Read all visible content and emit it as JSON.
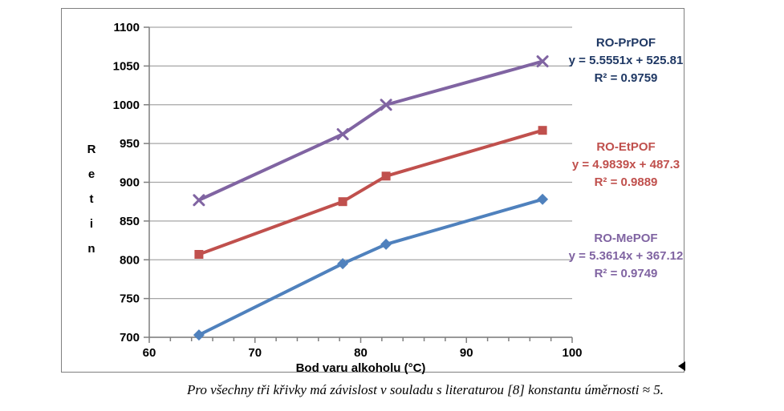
{
  "figure": {
    "caption": "Pro všechny tři křivky má závislost v souladu s literaturou [8] konstantu úměrnosti ≈ 5."
  },
  "chart_data": {
    "type": "line",
    "title": "",
    "xlabel": "Bod varu alkoholu (°C)",
    "ylabel": "Retin",
    "xlim": [
      60,
      100
    ],
    "ylim": [
      700,
      1100
    ],
    "x_major_step": 10,
    "x_minor_step": 2,
    "y_step": 50,
    "grid": true,
    "legend_position": "right-side data labels",
    "x": [
      64.7,
      78.3,
      82.4,
      97.2
    ],
    "series": [
      {
        "name": "RO-PrPOF",
        "values": [
          877,
          962,
          1000,
          1056
        ],
        "color": "#8064A2",
        "marker": "x",
        "label_color": "#1F3864",
        "equation": "y = 5.5551x + 525.81",
        "r_squared": "R² = 0.9759"
      },
      {
        "name": "RO-EtPOF",
        "values": [
          807,
          875,
          908,
          967
        ],
        "color": "#C0504D",
        "marker": "square",
        "label_color": "#C0504D",
        "equation": "y = 4.9839x + 487.3",
        "r_squared": "R² = 0.9889"
      },
      {
        "name": "RO-MePOF",
        "values": [
          703,
          795,
          820,
          878
        ],
        "color": "#4F81BD",
        "marker": "diamond",
        "label_color": "#8064A2",
        "equation": "y = 5.3614x + 367.12",
        "r_squared": "R² = 0.9749"
      }
    ],
    "colors": {
      "gridline": "#a6a6a6",
      "axis": "#7f7f7f",
      "purple_series": "#8064A2",
      "red_series": "#C0504D",
      "blue_series": "#4F81BD",
      "navy_label": "#1F3864"
    }
  }
}
